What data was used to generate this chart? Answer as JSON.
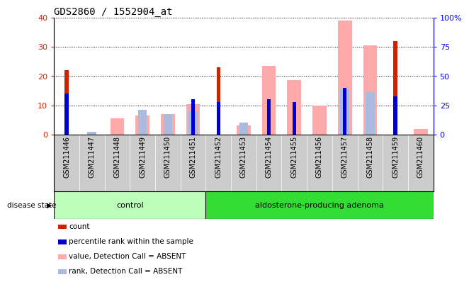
{
  "title": "GDS2860 / 1552904_at",
  "samples": [
    "GSM211446",
    "GSM211447",
    "GSM211448",
    "GSM211449",
    "GSM211450",
    "GSM211451",
    "GSM211452",
    "GSM211453",
    "GSM211454",
    "GSM211455",
    "GSM211456",
    "GSM211457",
    "GSM211458",
    "GSM211459",
    "GSM211460"
  ],
  "count": [
    22,
    0,
    0,
    0,
    0,
    0,
    23,
    0,
    0,
    0,
    0,
    0,
    0,
    32,
    0
  ],
  "percentile_rank": [
    14,
    0,
    0,
    0,
    0,
    12,
    11,
    0,
    12,
    11,
    0,
    16,
    0,
    13,
    0
  ],
  "value_absent": [
    0,
    0,
    5.5,
    6.5,
    7.0,
    10.5,
    0,
    3.0,
    23.5,
    18.5,
    10.0,
    39.0,
    30.5,
    0,
    2.0
  ],
  "rank_absent": [
    0,
    1.0,
    0,
    8.5,
    7.0,
    8.0,
    0,
    4.0,
    0,
    0,
    0,
    15.5,
    14.5,
    0,
    0
  ],
  "control_count": 6,
  "adenoma_count": 9,
  "ylim_left": [
    0,
    40
  ],
  "ylim_right": [
    0,
    100
  ],
  "count_color": "#cc2200",
  "percentile_color": "#0000cc",
  "value_absent_color": "#ffaaaa",
  "rank_absent_color": "#aabbdd",
  "control_color": "#bbffbb",
  "adenoma_color": "#33dd33",
  "bg_gray": "#cccccc",
  "legend_items": [
    "count",
    "percentile rank within the sample",
    "value, Detection Call = ABSENT",
    "rank, Detection Call = ABSENT"
  ],
  "legend_colors": [
    "#cc2200",
    "#0000cc",
    "#ffaaaa",
    "#aabbdd"
  ]
}
